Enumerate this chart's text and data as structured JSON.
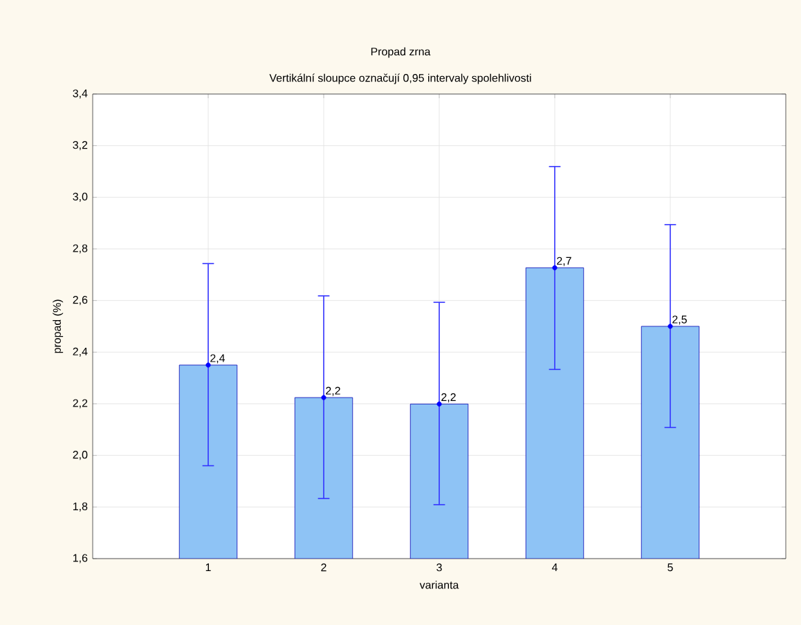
{
  "chart_data": {
    "type": "bar",
    "title": "Propad zrna",
    "subtitle": "Vertikální sloupce označují 0,95 intervaly spolehlivosti",
    "xlabel": "varianta",
    "ylabel": "propad (%)",
    "categories": [
      "1",
      "2",
      "3",
      "4",
      "5"
    ],
    "series": [
      {
        "color": "#8ec3f5",
        "values": [
          2.35,
          2.224,
          2.199,
          2.727,
          2.5
        ],
        "errors": [
          [
            1.96,
            2.743
          ],
          [
            1.833,
            2.618
          ],
          [
            1.809,
            2.593
          ],
          [
            2.333,
            3.119
          ],
          [
            2.108,
            2.894
          ]
        ],
        "value_labels": [
          "2,4",
          "2,2",
          "2,2",
          "2,7",
          "2,5"
        ]
      },
      {
        "type": "scatter",
        "color": "#0000ff",
        "marker": "circle",
        "x": [
          "1",
          "2",
          "3",
          "4",
          "5"
        ],
        "values": [
          2.35,
          2.224,
          2.199,
          2.727,
          2.5
        ]
      }
    ],
    "grid": true,
    "ylim": [
      1.6,
      3.4
    ],
    "yticks": [
      {
        "value": 1.6,
        "label": "1,6"
      },
      {
        "value": 1.8,
        "label": "1,8"
      },
      {
        "value": 2.0,
        "label": "2,0"
      },
      {
        "value": 2.2,
        "label": "2,2"
      },
      {
        "value": 2.4,
        "label": "2,4"
      },
      {
        "value": 2.6,
        "label": "2,6"
      },
      {
        "value": 2.8,
        "label": "2,8"
      },
      {
        "value": 3.0,
        "label": "3,0"
      },
      {
        "value": 3.2,
        "label": "3,2"
      },
      {
        "value": 3.4,
        "label": "3,4"
      }
    ]
  }
}
